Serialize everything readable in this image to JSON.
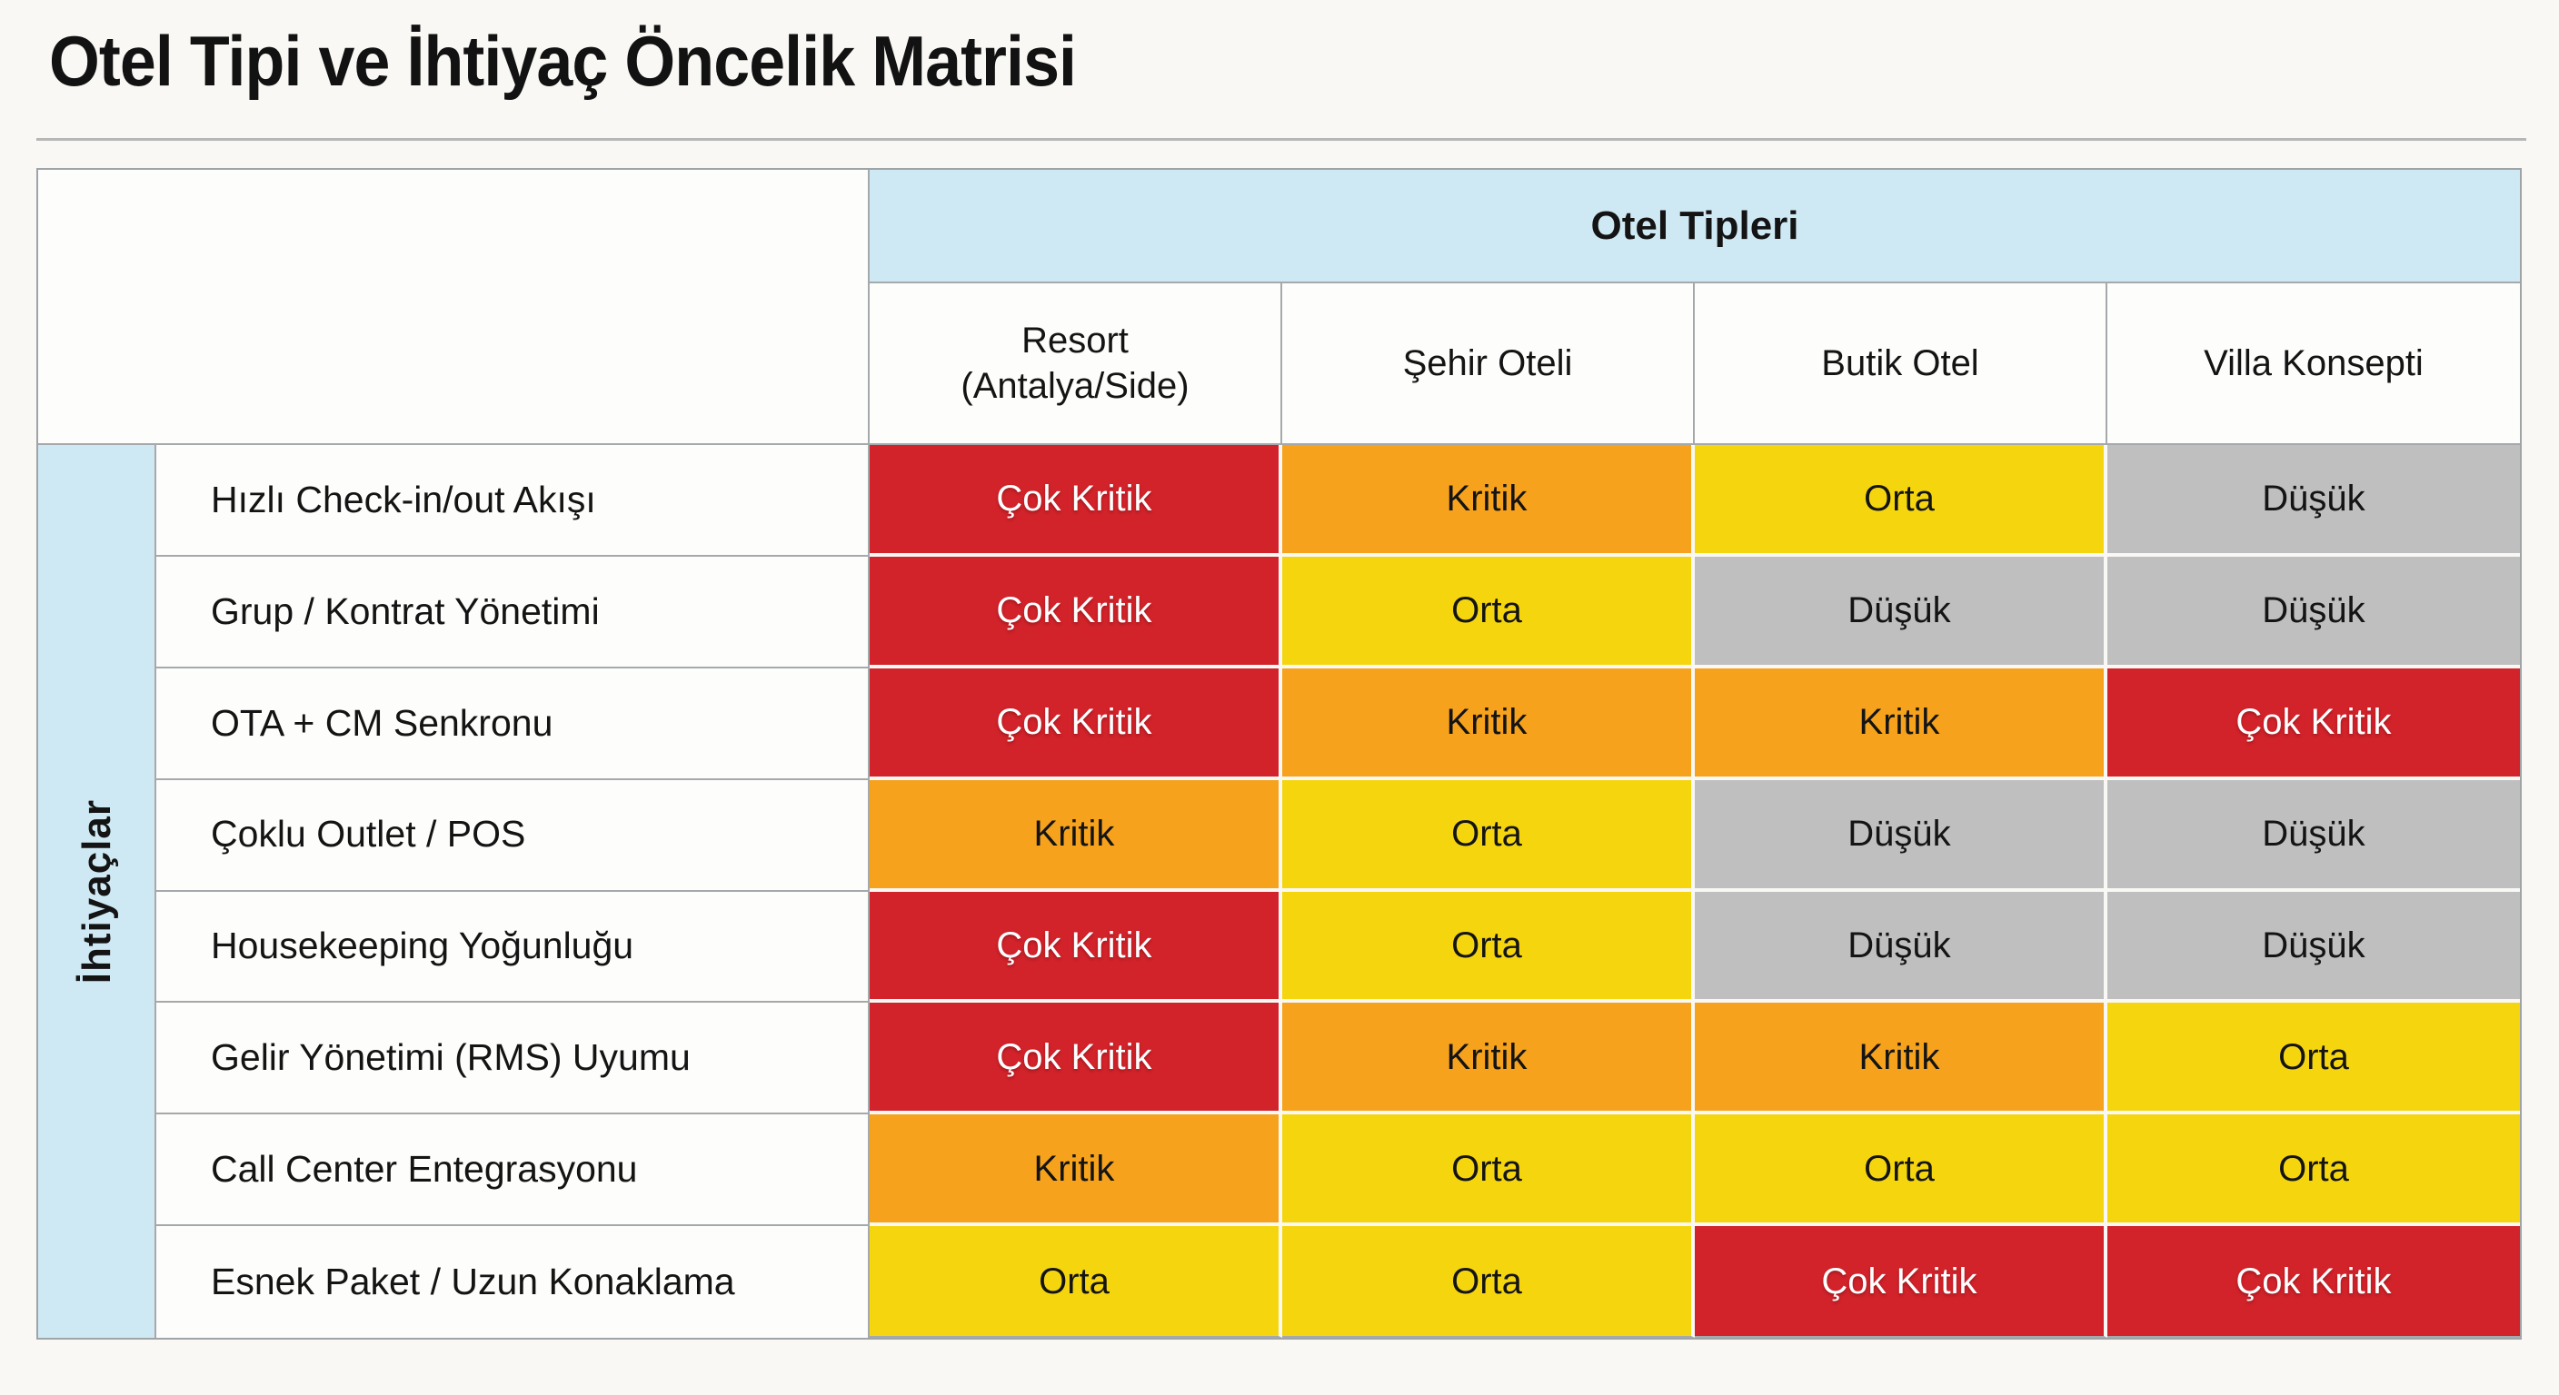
{
  "title": "Otel Tipi ve İhtiyaç Öncelik Matrisi",
  "matrix": {
    "col_group_label": "Otel Tipleri",
    "row_group_label": "İhtiyaçlar",
    "columns": [
      "Resort (Antalya/Side)",
      "Şehir Oteli",
      "Butik Otel",
      "Villa Konsepti"
    ],
    "rows": [
      {
        "label": "Hızlı Check-in/out Akışı",
        "values": [
          "cok_kritik",
          "kritik",
          "orta",
          "dusuk"
        ]
      },
      {
        "label": "Grup / Kontrat Yönetimi",
        "values": [
          "cok_kritik",
          "orta",
          "dusuk",
          "dusuk"
        ]
      },
      {
        "label": "OTA + CM Senkronu",
        "values": [
          "cok_kritik",
          "kritik",
          "kritik",
          "cok_kritik"
        ]
      },
      {
        "label": "Çoklu Outlet / POS",
        "values": [
          "kritik",
          "orta",
          "dusuk",
          "dusuk"
        ]
      },
      {
        "label": "Housekeeping Yoğunluğu",
        "values": [
          "cok_kritik",
          "orta",
          "dusuk",
          "dusuk"
        ]
      },
      {
        "label": "Gelir Yönetimi (RMS) Uyumu",
        "values": [
          "cok_kritik",
          "kritik",
          "kritik",
          "orta"
        ]
      },
      {
        "label": "Call Center Entegrasyonu",
        "values": [
          "kritik",
          "orta",
          "orta",
          "orta"
        ]
      },
      {
        "label": "Esnek Paket / Uzun Konaklama",
        "values": [
          "orta",
          "orta",
          "cok_kritik",
          "cok_kritik"
        ]
      }
    ],
    "levels": {
      "cok_kritik": {
        "label": "Çok Kritik",
        "bg": "#D2222A",
        "fg": "#FFFFFF"
      },
      "kritik": {
        "label": "Kritik",
        "bg": "#F6A21C",
        "fg": "#141414"
      },
      "orta": {
        "label": "Orta",
        "bg": "#F5D60E",
        "fg": "#141414"
      },
      "dusuk": {
        "label": "Düşük",
        "bg": "#BFBFBF",
        "fg": "#141414"
      }
    },
    "colors": {
      "header_band": "#CFE9F4",
      "grid_line": "#A6A9AB",
      "cell_gap": "#FAF8F4",
      "page_background": "#FAF8F4",
      "text": "#141414"
    }
  },
  "chart_data": {
    "type": "heatmap",
    "title": "Otel Tipi ve İhtiyaç Öncelik Matrisi",
    "x_group_label": "Otel Tipleri",
    "y_group_label": "İhtiyaçlar",
    "x_categories": [
      "Resort (Antalya/Side)",
      "Şehir Oteli",
      "Butik Otel",
      "Villa Konsepti"
    ],
    "y_categories": [
      "Hızlı Check-in/out Akışı",
      "Grup / Kontrat Yönetimi",
      "OTA + CM Senkronu",
      "Çoklu Outlet / POS",
      "Housekeeping Yoğunluğu",
      "Gelir Yönetimi (RMS) Uyumu",
      "Call Center Entegrasyonu",
      "Esnek Paket / Uzun Konaklama"
    ],
    "values": [
      [
        "Çok Kritik",
        "Kritik",
        "Orta",
        "Düşük"
      ],
      [
        "Çok Kritik",
        "Orta",
        "Düşük",
        "Düşük"
      ],
      [
        "Çok Kritik",
        "Kritik",
        "Kritik",
        "Çok Kritik"
      ],
      [
        "Kritik",
        "Orta",
        "Düşük",
        "Düşük"
      ],
      [
        "Çok Kritik",
        "Orta",
        "Düşük",
        "Düşük"
      ],
      [
        "Çok Kritik",
        "Kritik",
        "Kritik",
        "Orta"
      ],
      [
        "Kritik",
        "Orta",
        "Orta",
        "Orta"
      ],
      [
        "Orta",
        "Orta",
        "Çok Kritik",
        "Çok Kritik"
      ]
    ],
    "value_scale": [
      {
        "value": "Çok Kritik",
        "color": "#D2222A"
      },
      {
        "value": "Kritik",
        "color": "#F6A21C"
      },
      {
        "value": "Orta",
        "color": "#F5D60E"
      },
      {
        "value": "Düşük",
        "color": "#BFBFBF"
      }
    ],
    "legend_position": "none",
    "grid": true
  }
}
